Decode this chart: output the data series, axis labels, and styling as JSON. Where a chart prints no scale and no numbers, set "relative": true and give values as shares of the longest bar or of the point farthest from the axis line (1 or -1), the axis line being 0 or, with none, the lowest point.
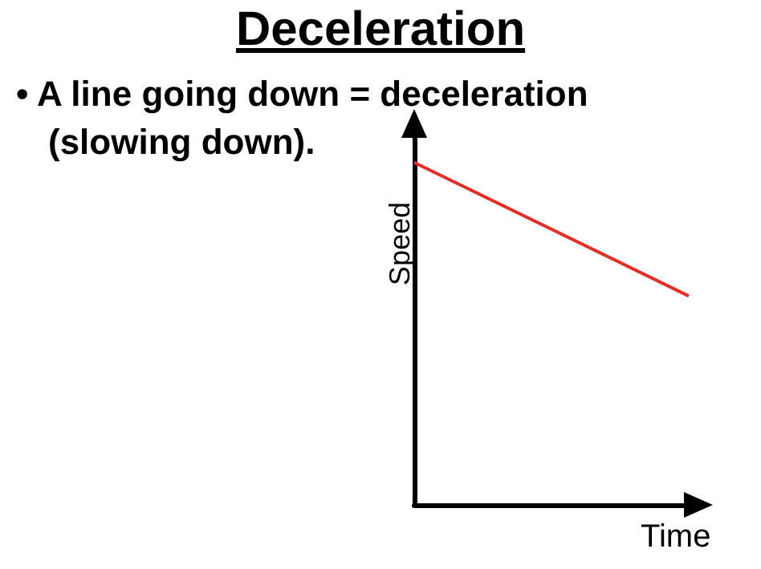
{
  "chart_data": {
    "type": "line",
    "title": "Deceleration",
    "annotations": [
      "• A line going down = deceleration (slowing down)."
    ],
    "xlabel": "Time",
    "ylabel": "Speed",
    "categories": [
      null,
      null
    ],
    "relative": true,
    "series": [
      {
        "color": "#e0302a",
        "values": [
          1,
          0.61
        ]
      }
    ],
    "marker": "none",
    "grid": false
  }
}
